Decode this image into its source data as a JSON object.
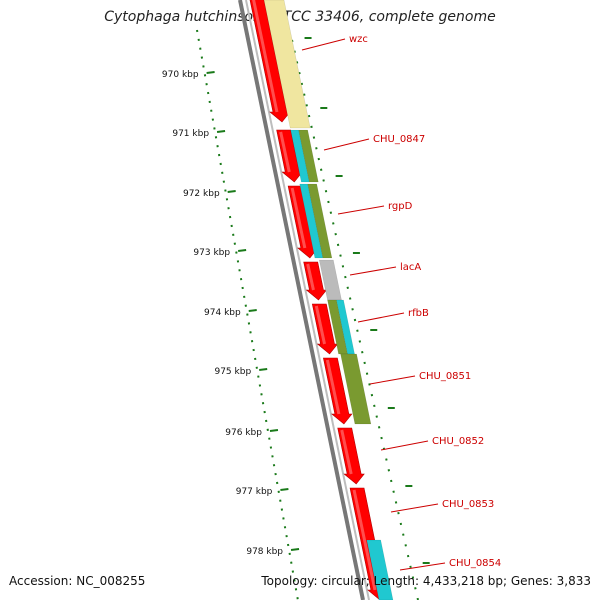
{
  "title": "Cytophaga hutchinsonii ATCC 33406, complete genome",
  "footer": {
    "accession": "Accession: NC_008255",
    "summary": "Topology: circular; Length: 4,433,218 bp; Genes: 3,833"
  },
  "colors": {
    "backbone": "#777777",
    "forward_cds": "#ff0000",
    "ruler": "#1a7a1a",
    "label": "#cc0000",
    "cog_yellow": "#f0e6a0",
    "cog_olive": "#7a9a30",
    "cog_cyan": "#20c8d0",
    "cog_grey": "#bbbbbb"
  },
  "ruler_ticks": [
    "970 kbp",
    "971 kbp",
    "972 kbp",
    "973 kbp",
    "974 kbp",
    "975 kbp",
    "976 kbp",
    "977 kbp",
    "978 kbp"
  ],
  "gene_labels": [
    "wzc",
    "CHU_0847",
    "rgpD",
    "lacA",
    "rfbB",
    "CHU_0851",
    "CHU_0852",
    "CHU_0853",
    "CHU_0854"
  ]
}
